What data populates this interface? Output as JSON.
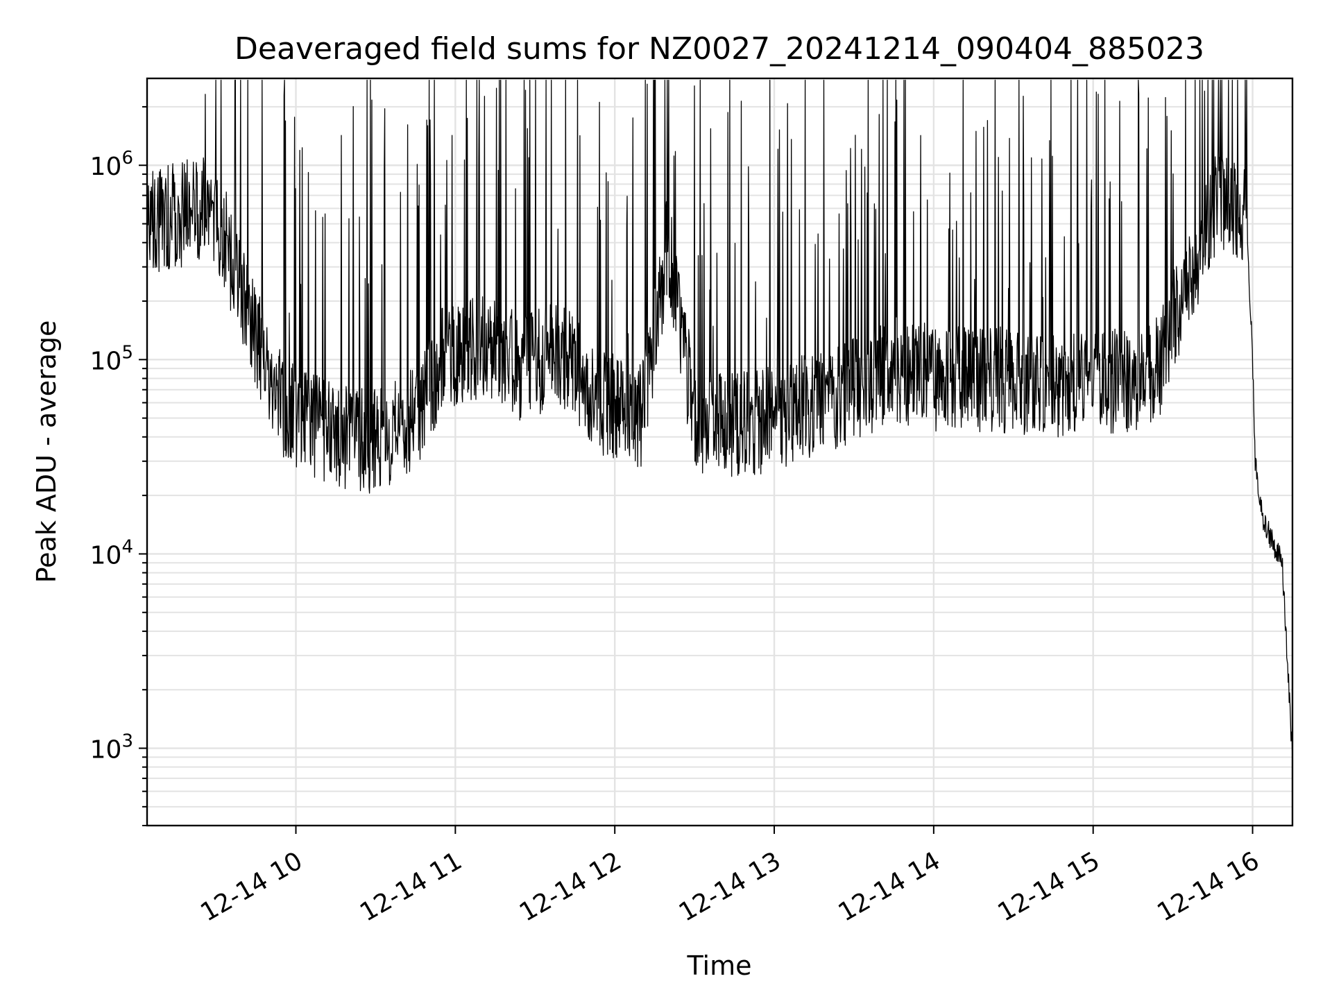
{
  "chart_data": {
    "type": "line",
    "title": "Deaveraged field sums for NZ0027_20241214_090404_885023",
    "xlabel": "Time",
    "ylabel": "Peak ADU - average",
    "yscale": "log",
    "grid": true,
    "xlim": [
      "2024-12-14 09:04",
      "2024-12-14 16:15"
    ],
    "ylim": [
      400,
      2800000
    ],
    "x_ticks": [
      "12-14 10",
      "12-14 11",
      "12-14 12",
      "12-14 13",
      "12-14 14",
      "12-14 15",
      "12-14 16"
    ],
    "x_tick_times": [
      "2024-12-14 10:00",
      "2024-12-14 11:00",
      "2024-12-14 12:00",
      "2024-12-14 13:00",
      "2024-12-14 14:00",
      "2024-12-14 15:00",
      "2024-12-14 16:00"
    ],
    "y_ticks": [
      {
        "base": "10",
        "exp": "3",
        "value": 1000
      },
      {
        "base": "10",
        "exp": "4",
        "value": 10000
      },
      {
        "base": "10",
        "exp": "5",
        "value": 100000
      },
      {
        "base": "10",
        "exp": "6",
        "value": 1000000
      }
    ],
    "line_color": "#000000",
    "series": [
      {
        "x": [
          "2024-12-14 09:04",
          "2024-12-14 09:15",
          "2024-12-14 09:25",
          "2024-12-14 09:32",
          "2024-12-14 09:38",
          "2024-12-14 09:44",
          "2024-12-14 09:50",
          "2024-12-14 09:55",
          "2024-12-14 10:00",
          "2024-12-14 10:15",
          "2024-12-14 10:30",
          "2024-12-14 10:45",
          "2024-12-14 10:55",
          "2024-12-14 11:10",
          "2024-12-14 11:25",
          "2024-12-14 11:40",
          "2024-12-14 11:55",
          "2024-12-14 12:10",
          "2024-12-14 12:20",
          "2024-12-14 12:30",
          "2024-12-14 12:45",
          "2024-12-14 13:00",
          "2024-12-14 13:15",
          "2024-12-14 13:30",
          "2024-12-14 13:45",
          "2024-12-14 14:00",
          "2024-12-14 14:20",
          "2024-12-14 14:40",
          "2024-12-14 15:00",
          "2024-12-14 15:15",
          "2024-12-14 15:25",
          "2024-12-14 15:33",
          "2024-12-14 15:40",
          "2024-12-14 15:47",
          "2024-12-14 15:52",
          "2024-12-14 15:56",
          "2024-12-14 15:58",
          "2024-12-14 16:00",
          "2024-12-14 16:01",
          "2024-12-14 16:04",
          "2024-12-14 16:08",
          "2024-12-14 16:11",
          "2024-12-14 16:13",
          "2024-12-14 16:15"
        ],
        "values": [
          500000,
          550000,
          600000,
          500000,
          250000,
          150000,
          80000,
          60000,
          50000,
          40000,
          38000,
          50000,
          100000,
          120000,
          90000,
          110000,
          60000,
          50000,
          400000,
          50000,
          45000,
          50000,
          60000,
          70000,
          90000,
          80000,
          80000,
          75000,
          75000,
          80000,
          90000,
          200000,
          350000,
          700000,
          650000,
          600000,
          450000,
          100000,
          30000,
          15000,
          11000,
          9500,
          3000,
          900
        ]
      }
    ]
  }
}
